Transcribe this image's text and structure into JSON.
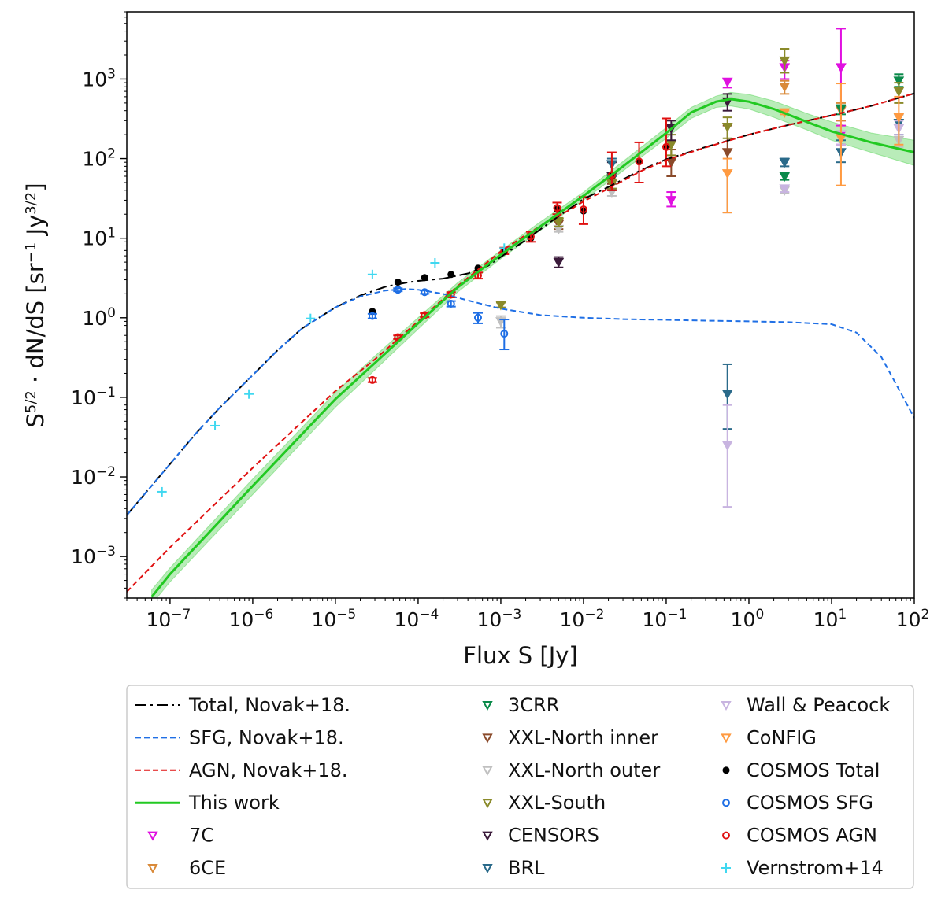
{
  "chart_data": {
    "type": "scatter",
    "title": "",
    "xlabel": "Flux S [Jy]",
    "ylabel": "S5/2 · dN/dS [sr−1 Jy3/2]",
    "ylabel_parts": {
      "a": "S",
      "a_sup": "5/2",
      "b": " · dN/dS [sr",
      "b_sup": "−1",
      "c": " Jy",
      "c_sup": "3/2",
      "d": "]"
    },
    "xscale": "log",
    "yscale": "log",
    "xlim": [
      3e-08,
      100
    ],
    "ylim": [
      0.0003,
      7000
    ],
    "xticks": [
      {
        "value": 1e-07,
        "base": "10",
        "exp": "−7"
      },
      {
        "value": 1e-06,
        "base": "10",
        "exp": "−6"
      },
      {
        "value": 1e-05,
        "base": "10",
        "exp": "−5"
      },
      {
        "value": 0.0001,
        "base": "10",
        "exp": "−4"
      },
      {
        "value": 0.001,
        "base": "10",
        "exp": "−3"
      },
      {
        "value": 0.01,
        "base": "10",
        "exp": "−2"
      },
      {
        "value": 0.1,
        "base": "10",
        "exp": "−1"
      },
      {
        "value": 1,
        "base": "10",
        "exp": "0"
      },
      {
        "value": 10,
        "base": "10",
        "exp": "1"
      },
      {
        "value": 100,
        "base": "10",
        "exp": "2"
      }
    ],
    "yticks": [
      {
        "value": 0.001,
        "base": "10",
        "exp": "−3"
      },
      {
        "value": 0.01,
        "base": "10",
        "exp": "−2"
      },
      {
        "value": 0.1,
        "base": "10",
        "exp": "−1"
      },
      {
        "value": 1,
        "base": "10",
        "exp": "0"
      },
      {
        "value": 10,
        "base": "10",
        "exp": "1"
      },
      {
        "value": 100,
        "base": "10",
        "exp": "2"
      },
      {
        "value": 1000,
        "base": "10",
        "exp": "3"
      }
    ],
    "legend_position": "below",
    "series": [
      {
        "name": "Total, Novak+18.",
        "kind": "line",
        "style": "dashdot",
        "color": "#000000",
        "x": [
          3e-08,
          5e-08,
          1e-07,
          2e-07,
          4e-07,
          1e-06,
          2e-06,
          4e-06,
          1e-05,
          2e-05,
          4e-05,
          7e-05,
          0.0001,
          0.0002,
          0.0004,
          0.0007,
          0.001,
          0.002,
          0.004,
          0.007,
          0.01,
          0.02,
          0.05,
          0.1,
          0.3,
          1,
          3,
          10,
          30,
          100
        ],
        "y": [
          0.0033,
          0.0062,
          0.0145,
          0.034,
          0.074,
          0.19,
          0.39,
          0.74,
          1.35,
          1.9,
          2.45,
          2.75,
          2.9,
          3.1,
          3.6,
          4.5,
          5.8,
          9.5,
          16,
          24,
          31,
          44,
          72,
          98,
          140,
          200,
          265,
          350,
          460,
          660
        ]
      },
      {
        "name": "SFG, Novak+18.",
        "kind": "line",
        "style": "dashed",
        "color": "#1f6fe5",
        "x": [
          3e-08,
          5e-08,
          1e-07,
          2e-07,
          4e-07,
          1e-06,
          2e-06,
          4e-06,
          1e-05,
          2e-05,
          4e-05,
          7e-05,
          0.0001,
          0.0002,
          0.0004,
          0.001,
          0.003,
          0.01,
          0.03,
          0.1,
          0.3,
          1,
          3,
          10,
          20,
          40,
          70,
          100
        ],
        "y": [
          0.0033,
          0.0062,
          0.0145,
          0.034,
          0.074,
          0.19,
          0.39,
          0.74,
          1.35,
          1.85,
          2.2,
          2.3,
          2.25,
          2.0,
          1.65,
          1.3,
          1.08,
          1.0,
          0.96,
          0.94,
          0.92,
          0.9,
          0.88,
          0.83,
          0.65,
          0.32,
          0.11,
          0.055
        ]
      },
      {
        "name": "AGN, Novak+18.",
        "kind": "line",
        "style": "dashed",
        "color": "#e01010",
        "x": [
          3e-08,
          1e-07,
          1e-06,
          1e-05,
          3e-05,
          0.0001,
          0.0003,
          0.001,
          0.002,
          0.004,
          0.007,
          0.01,
          0.02,
          0.05,
          0.1,
          0.3,
          1,
          3,
          10,
          30,
          100
        ],
        "y": [
          0.00036,
          0.0013,
          0.013,
          0.12,
          0.3,
          0.9,
          2.5,
          6.8,
          11,
          17,
          23,
          29,
          42,
          70,
          96,
          138,
          200,
          265,
          350,
          460,
          660
        ]
      },
      {
        "name": "This work",
        "kind": "line",
        "style": "solid",
        "color": "#22c922",
        "band_color": "#7fdc7f",
        "x": [
          6e-08,
          1e-07,
          1e-06,
          1e-05,
          3e-05,
          0.0001,
          0.0003,
          0.001,
          0.003,
          0.01,
          0.03,
          0.1,
          0.2,
          0.4,
          0.6,
          1,
          2,
          5,
          10,
          30,
          100
        ],
        "y": [
          0.00031,
          0.0006,
          0.0077,
          0.095,
          0.27,
          0.85,
          2.4,
          6.2,
          14,
          34,
          80,
          210,
          380,
          520,
          560,
          520,
          420,
          290,
          220,
          160,
          120
        ],
        "lo": [
          0.00025,
          0.00048,
          0.006,
          0.075,
          0.22,
          0.72,
          2.1,
          5.5,
          12.5,
          30,
          70,
          180,
          320,
          440,
          460,
          420,
          330,
          230,
          170,
          120,
          82
        ],
        "hi": [
          0.00038,
          0.00072,
          0.0094,
          0.115,
          0.33,
          1.0,
          2.75,
          7.0,
          16,
          38,
          92,
          245,
          440,
          610,
          680,
          640,
          530,
          370,
          290,
          210,
          170
        ]
      },
      {
        "name": "7C",
        "kind": "triangle",
        "color": "#e010e0",
        "points": [
          [
            0.115,
            30,
            25,
            38
          ],
          [
            0.55,
            920,
            780,
            1000
          ],
          [
            2.7,
            1400,
            1000,
            1700
          ],
          [
            13,
            1400,
            300,
            4300
          ],
          [
            13,
            200,
            150,
            260
          ]
        ]
      },
      {
        "name": "6CE",
        "kind": "triangle",
        "color": "#d98a3a",
        "points": [
          [
            2.7,
            800,
            650,
            950
          ],
          [
            13,
            400,
            300,
            500
          ]
        ]
      },
      {
        "name": "3CRR",
        "kind": "triangle",
        "color": "#0a8a4a",
        "points": [
          [
            2.7,
            60,
            54,
            66
          ],
          [
            13,
            420,
            360,
            470
          ],
          [
            65,
            950,
            800,
            1150
          ]
        ]
      },
      {
        "name": "XXL-North inner",
        "kind": "triangle",
        "color": "#8a4a2a",
        "points": [
          [
            0.115,
            90,
            60,
            130
          ],
          [
            0.55,
            120,
            21,
            260
          ],
          [
            0.022,
            55,
            48,
            62
          ],
          [
            0.005,
            15,
            13,
            17
          ]
        ]
      },
      {
        "name": "XXL-North outer",
        "kind": "triangle",
        "color": "#c0c0c0",
        "points": [
          [
            0.022,
            38,
            34,
            42
          ],
          [
            0.005,
            13,
            12,
            14
          ],
          [
            0.001,
            0.9,
            0.75,
            1.05
          ],
          [
            2.7,
            40,
            37,
            44
          ],
          [
            65,
            170,
            140,
            200
          ]
        ]
      },
      {
        "name": "XXL-South",
        "kind": "triangle",
        "color": "#8a8a2a",
        "points": [
          [
            0.001,
            1.45,
            1.35,
            1.55
          ],
          [
            0.005,
            16,
            14,
            18
          ],
          [
            0.022,
            48,
            42,
            55
          ],
          [
            0.115,
            150,
            110,
            200
          ],
          [
            0.55,
            250,
            180,
            330
          ],
          [
            2.7,
            1700,
            1200,
            2400
          ],
          [
            65,
            700,
            500,
            900
          ]
        ]
      },
      {
        "name": "CENSORS",
        "kind": "triangle",
        "color": "#3a1a3a",
        "points": [
          [
            0.005,
            5,
            4.3,
            5.8
          ],
          [
            0.022,
            60,
            40,
            90
          ],
          [
            0.115,
            240,
            170,
            300
          ],
          [
            0.55,
            520,
            400,
            650
          ]
        ]
      },
      {
        "name": "BRL",
        "kind": "triangle",
        "color": "#2a6a8a",
        "points": [
          [
            0.55,
            0.11,
            0.04,
            0.26
          ],
          [
            2.7,
            90,
            80,
            100
          ],
          [
            13,
            120,
            90,
            170
          ],
          [
            65,
            280,
            200,
            360
          ],
          [
            0.022,
            85,
            60,
            100
          ]
        ]
      },
      {
        "name": "Wall & Peacock",
        "kind": "triangle",
        "color": "#c8b4e0",
        "points": [
          [
            0.55,
            0.025,
            0.0042,
            0.08
          ],
          [
            2.7,
            42,
            38,
            46
          ],
          [
            13,
            180,
            150,
            220
          ],
          [
            65,
            240,
            200,
            300
          ]
        ]
      },
      {
        "name": "CoNFIG",
        "kind": "triangle",
        "color": "#ff9a40",
        "points": [
          [
            0.55,
            65,
            21,
            100
          ],
          [
            2.7,
            380,
            360,
            400
          ],
          [
            13,
            180,
            46,
            880
          ],
          [
            65,
            330,
            150,
            600
          ]
        ]
      },
      {
        "name": "COSMOS Total",
        "kind": "dot",
        "color": "#000000",
        "points": [
          [
            2.8e-05,
            1.2
          ],
          [
            5.7e-05,
            2.8
          ],
          [
            0.00012,
            3.2
          ],
          [
            0.00025,
            3.5
          ],
          [
            0.00053,
            4.2
          ],
          [
            0.0011,
            6.8
          ],
          [
            0.0023,
            10
          ],
          [
            0.0048,
            23
          ],
          [
            0.01,
            22
          ],
          [
            0.022,
            60
          ],
          [
            0.047,
            92
          ],
          [
            0.1,
            140
          ]
        ]
      },
      {
        "name": "COSMOS SFG",
        "kind": "circle",
        "color": "#1f6fe5",
        "points": [
          [
            2.8e-05,
            1.05,
            0.98,
            1.12
          ],
          [
            5.7e-05,
            2.25,
            2.15,
            2.35
          ],
          [
            0.00012,
            2.1,
            2.0,
            2.2
          ],
          [
            0.00025,
            1.5,
            1.38,
            1.62
          ],
          [
            0.00053,
            1.0,
            0.85,
            1.15
          ],
          [
            0.0011,
            0.63,
            0.4,
            0.95
          ]
        ]
      },
      {
        "name": "COSMOS AGN",
        "kind": "circle",
        "color": "#e01010",
        "points": [
          [
            2.8e-05,
            0.165,
            0.155,
            0.175
          ],
          [
            5.7e-05,
            0.57,
            0.54,
            0.6
          ],
          [
            0.00012,
            1.08,
            1.02,
            1.14
          ],
          [
            0.00025,
            1.95,
            1.8,
            2.1
          ],
          [
            0.00053,
            3.4,
            3.1,
            3.7
          ],
          [
            0.0011,
            6.9,
            6.3,
            7.6
          ],
          [
            0.0023,
            10.5,
            9.0,
            12
          ],
          [
            0.0048,
            24,
            20,
            28
          ],
          [
            0.01,
            23,
            15,
            33
          ],
          [
            0.022,
            62,
            40,
            120
          ],
          [
            0.047,
            92,
            50,
            160
          ],
          [
            0.1,
            140,
            80,
            320
          ]
        ]
      },
      {
        "name": "Vernstrom+14",
        "kind": "plus",
        "color": "#40d8f0",
        "points": [
          [
            8e-08,
            0.0065
          ],
          [
            3.5e-07,
            0.044
          ],
          [
            9e-07,
            0.11
          ],
          [
            5e-06,
            0.98
          ],
          [
            2.8e-05,
            3.5
          ],
          [
            0.00016,
            4.9
          ],
          [
            0.0011,
            7.5
          ]
        ]
      }
    ]
  }
}
